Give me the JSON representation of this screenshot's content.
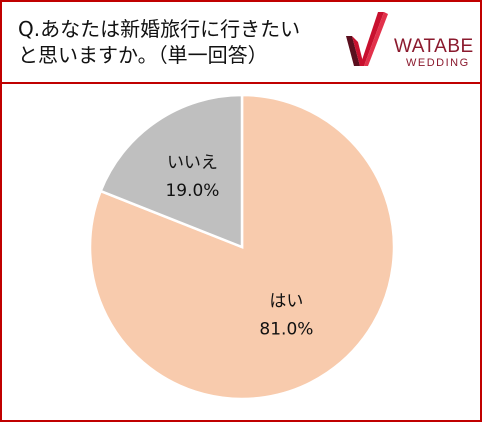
{
  "header": {
    "question_line1": "Q.あなたは新婚旅行に行きたい",
    "question_line2": "と思いますか。（単一回答）"
  },
  "logo": {
    "name": "WATABE",
    "sub": "WEDDING",
    "color": "#8b1a2e",
    "mark_color": "#c8102e"
  },
  "colors": {
    "border": "#c00000",
    "yes": "#f8cbad",
    "no": "#bfbfbf"
  },
  "chart_data": {
    "type": "pie",
    "title": "",
    "slices": [
      {
        "label": "はい",
        "value": 81.0,
        "display": "81.0%",
        "color": "#f8cbad"
      },
      {
        "label": "いいえ",
        "value": 19.0,
        "display": "19.0%",
        "color": "#bfbfbf"
      }
    ],
    "start_angle_deg": 0,
    "direction": "clockwise",
    "legend": "none"
  }
}
